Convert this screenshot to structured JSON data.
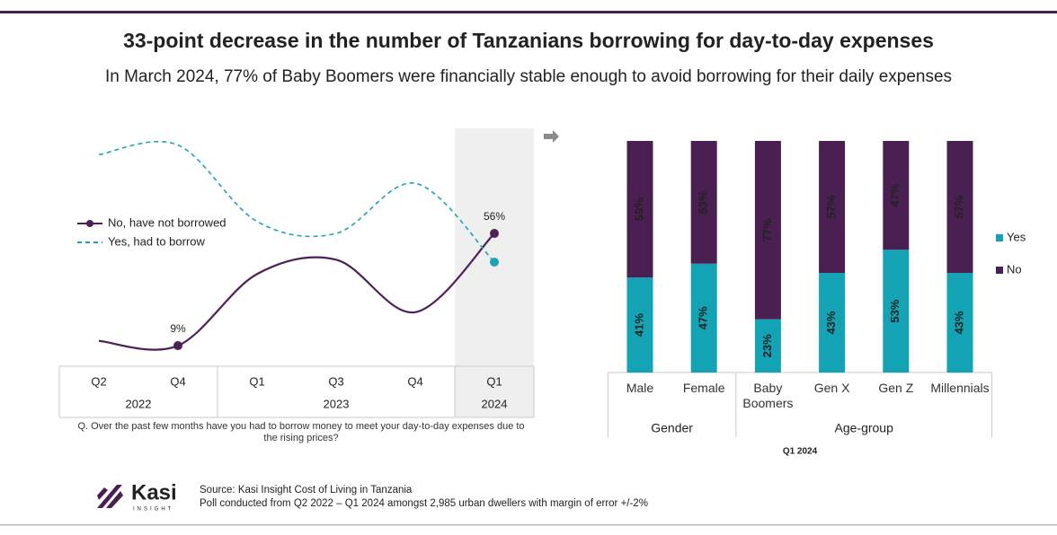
{
  "header": {
    "title": "33-point decrease in the number of Tanzanians borrowing for day-to-day expenses",
    "subtitle": "In March 2024, 77% of Baby Boomers were financially stable enough to avoid borrowing for their daily expenses"
  },
  "chart_data": [
    {
      "type": "line",
      "groups": [
        {
          "label": "2022",
          "categories": [
            "Q2",
            "Q4"
          ]
        },
        {
          "label": "2023",
          "categories": [
            "Q1",
            "Q3",
            "Q4"
          ]
        },
        {
          "label": "2024",
          "categories": [
            "Q1"
          ]
        }
      ],
      "ylim": [
        0,
        100
      ],
      "series": [
        {
          "name": "No, have not borrowed",
          "color": "#4d2158",
          "style": "solid",
          "values": [
            11,
            9,
            39,
            45,
            23,
            56
          ],
          "value_labels": [
            null,
            "9%",
            null,
            null,
            null,
            "56%"
          ]
        },
        {
          "name": "Yes, had to borrow",
          "color": "#1ba5b2",
          "style": "dashed",
          "values": [
            89,
            93,
            61,
            56,
            77,
            44
          ]
        }
      ],
      "note": "Q. Over the past few months have you had to borrow money to meet your day-to-day expenses due to the rising prices?"
    },
    {
      "type": "stacked_bar",
      "groups": [
        {
          "label": "Gender",
          "categories": [
            "Male",
            "Female"
          ]
        },
        {
          "label": "Age-group",
          "categories": [
            "Baby Boomers",
            "Gen X",
            "Gen Z",
            "Millennials"
          ]
        }
      ],
      "ylim": [
        0,
        100
      ],
      "series": [
        {
          "name": "Yes",
          "color": "#13a3b5",
          "label_color": "#1a1a1a",
          "values": [
            41,
            47,
            23,
            43,
            53,
            43
          ],
          "value_labels": [
            "41%",
            "47%",
            "23%",
            "43%",
            "53%",
            "43%"
          ]
        },
        {
          "name": "No",
          "color": "#4a1f52",
          "label_color": "#ffffff",
          "values": [
            59,
            53,
            77,
            57,
            47,
            57
          ],
          "value_labels": [
            "59%",
            "53%",
            "77%",
            "57%",
            "47%",
            "57%"
          ]
        }
      ],
      "xlabel": "Q1 2024"
    }
  ],
  "footer": {
    "logo": "Kasi",
    "logo_sub": "INSIGHT",
    "source": "Source: Kasi Insight Cost of Living in Tanzania",
    "poll": "Poll conducted from Q2 2022 – Q1 2024 amongst 2,985 urban dwellers with margin of error +/-2%"
  }
}
